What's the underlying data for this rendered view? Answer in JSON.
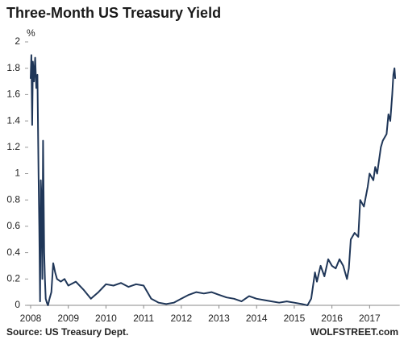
{
  "chart_data": {
    "type": "line",
    "title": "Three-Month US Treasury Yield",
    "y_label": "%",
    "source": "Source: US Treasury Dept.",
    "brand": "WOLFSTREET.com",
    "color": "#1f3658",
    "x": [
      2008.0,
      2008.02,
      2008.04,
      2008.06,
      2008.09,
      2008.12,
      2008.15,
      2008.18,
      2008.21,
      2008.23,
      2008.25,
      2008.27,
      2008.29,
      2008.31,
      2008.33,
      2008.36,
      2008.38,
      2008.4,
      2008.43,
      2008.46,
      2008.5,
      2008.55,
      2008.6,
      2008.65,
      2008.7,
      2008.8,
      2008.9,
      2009.0,
      2009.2,
      2009.4,
      2009.6,
      2009.8,
      2010.0,
      2010.2,
      2010.4,
      2010.6,
      2010.8,
      2011.0,
      2011.2,
      2011.4,
      2011.6,
      2011.8,
      2012.0,
      2012.2,
      2012.4,
      2012.6,
      2012.8,
      2013.0,
      2013.2,
      2013.4,
      2013.6,
      2013.8,
      2014.0,
      2014.2,
      2014.4,
      2014.6,
      2014.8,
      2015.0,
      2015.2,
      2015.35,
      2015.45,
      2015.55,
      2015.6,
      2015.7,
      2015.8,
      2015.9,
      2016.0,
      2016.1,
      2016.2,
      2016.3,
      2016.4,
      2016.45,
      2016.5,
      2016.6,
      2016.7,
      2016.75,
      2016.85,
      2016.95,
      2017.0,
      2017.1,
      2017.15,
      2017.2,
      2017.3,
      2017.35,
      2017.45,
      2017.5,
      2017.55,
      2017.6,
      2017.63,
      2017.66,
      2017.68
    ],
    "values": [
      1.72,
      1.9,
      1.37,
      1.85,
      1.7,
      1.88,
      1.65,
      1.75,
      1.0,
      0.6,
      0.03,
      0.95,
      0.8,
      0.2,
      1.25,
      0.4,
      0.2,
      0.05,
      0.02,
      0.0,
      0.05,
      0.1,
      0.32,
      0.25,
      0.2,
      0.18,
      0.2,
      0.15,
      0.18,
      0.12,
      0.05,
      0.1,
      0.16,
      0.15,
      0.17,
      0.14,
      0.16,
      0.15,
      0.05,
      0.02,
      0.01,
      0.02,
      0.05,
      0.08,
      0.1,
      0.09,
      0.1,
      0.08,
      0.06,
      0.05,
      0.03,
      0.07,
      0.05,
      0.04,
      0.03,
      0.02,
      0.03,
      0.02,
      0.01,
      0.0,
      0.05,
      0.25,
      0.18,
      0.3,
      0.22,
      0.35,
      0.3,
      0.28,
      0.35,
      0.3,
      0.2,
      0.28,
      0.5,
      0.55,
      0.52,
      0.8,
      0.75,
      0.9,
      1.0,
      0.95,
      1.05,
      1.0,
      1.2,
      1.25,
      1.3,
      1.45,
      1.4,
      1.6,
      1.75,
      1.8,
      1.72
    ],
    "xlim": [
      2008,
      2017.8
    ],
    "xticks": [
      2008,
      2009,
      2010,
      2011,
      2012,
      2013,
      2014,
      2015,
      2016,
      2017
    ],
    "ylim": [
      0,
      2
    ],
    "yticks": [
      0,
      0.2,
      0.4,
      0.6,
      0.8,
      1,
      1.2,
      1.4,
      1.6,
      1.8,
      2
    ]
  }
}
